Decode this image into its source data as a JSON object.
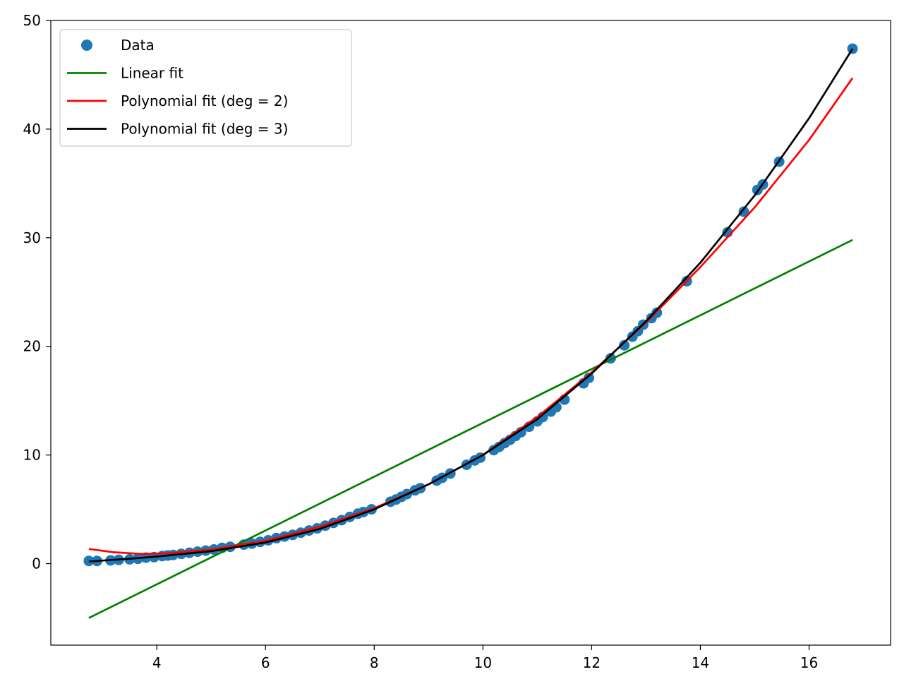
{
  "chart_data": {
    "type": "scatter",
    "title": "",
    "xlabel": "",
    "ylabel": "",
    "xlim": [
      2.05,
      17.5
    ],
    "ylim": [
      -7.5,
      50
    ],
    "x_ticks": [
      4,
      6,
      8,
      10,
      12,
      14,
      16
    ],
    "x_tick_labels": [
      "4",
      "6",
      "8",
      "10",
      "12",
      "14",
      "16"
    ],
    "y_ticks": [
      0,
      10,
      20,
      30,
      40,
      50
    ],
    "y_tick_labels": [
      "0",
      "10",
      "20",
      "30",
      "40",
      "50"
    ],
    "grid": false,
    "legend_position": "top-left",
    "series": [
      {
        "name": "Data",
        "kind": "scatter",
        "color": "#1f77b4",
        "x": [
          2.75,
          2.9,
          3.15,
          3.3,
          3.5,
          3.65,
          3.8,
          3.95,
          4.1,
          4.2,
          4.3,
          4.45,
          4.6,
          4.75,
          4.9,
          5.05,
          5.2,
          5.35,
          5.6,
          5.75,
          5.9,
          6.05,
          6.2,
          6.35,
          6.5,
          6.65,
          6.8,
          6.95,
          7.1,
          7.25,
          7.4,
          7.55,
          7.7,
          7.8,
          7.95,
          8.3,
          8.4,
          8.5,
          8.6,
          8.75,
          8.85,
          9.15,
          9.25,
          9.4,
          9.7,
          9.85,
          9.95,
          10.2,
          10.3,
          10.4,
          10.5,
          10.6,
          10.7,
          10.85,
          11.0,
          11.1,
          11.25,
          11.35,
          11.5,
          11.85,
          11.95,
          12.35,
          12.6,
          12.75,
          12.85,
          12.95,
          13.1,
          13.2,
          13.75,
          14.5,
          14.8,
          15.05,
          15.15,
          15.45,
          16.8
        ],
        "y": [
          0.25,
          0.25,
          0.3,
          0.35,
          0.4,
          0.45,
          0.55,
          0.6,
          0.7,
          0.75,
          0.8,
          0.9,
          1.0,
          1.1,
          1.2,
          1.3,
          1.45,
          1.55,
          1.75,
          1.85,
          2.0,
          2.15,
          2.35,
          2.5,
          2.65,
          2.85,
          3.05,
          3.25,
          3.5,
          3.75,
          4.0,
          4.3,
          4.6,
          4.75,
          5.0,
          5.7,
          5.9,
          6.15,
          6.4,
          6.75,
          6.95,
          7.65,
          7.9,
          8.3,
          9.1,
          9.5,
          9.75,
          10.45,
          10.75,
          11.1,
          11.4,
          11.75,
          12.1,
          12.6,
          13.1,
          13.5,
          14.0,
          14.4,
          15.1,
          16.6,
          17.1,
          18.9,
          20.1,
          20.9,
          21.4,
          22.0,
          22.6,
          23.1,
          26.0,
          30.5,
          32.4,
          34.4,
          34.9,
          37.0,
          47.4
        ]
      },
      {
        "name": "Linear fit",
        "kind": "line",
        "color": "#008000",
        "x": [
          2.75,
          16.8
        ],
        "y": [
          -5.0,
          29.8
        ]
      },
      {
        "name": "Polynomial fit (deg = 2)",
        "kind": "line",
        "color": "#ff0000",
        "x": [
          2.75,
          3.2,
          3.7,
          4.2,
          5.0,
          6.0,
          7.0,
          8.0,
          9.0,
          10.0,
          11.0,
          12.0,
          13.0,
          14.0,
          15.0,
          16.0,
          16.8
        ],
        "y": [
          1.35,
          1.05,
          0.9,
          0.95,
          1.3,
          2.1,
          3.4,
          5.1,
          7.3,
          10.0,
          13.5,
          17.6,
          22.2,
          27.3,
          32.8,
          39.0,
          44.7
        ]
      },
      {
        "name": "Polynomial fit (deg = 3)",
        "kind": "line",
        "color": "#000000",
        "x": [
          2.75,
          3.5,
          4.0,
          5.0,
          6.0,
          7.0,
          8.0,
          9.0,
          10.0,
          11.0,
          12.0,
          13.0,
          14.0,
          15.0,
          16.0,
          16.8
        ],
        "y": [
          0.2,
          0.45,
          0.65,
          1.15,
          1.95,
          3.2,
          5.0,
          7.3,
          10.0,
          13.3,
          17.5,
          22.3,
          27.7,
          33.9,
          41.0,
          47.4
        ]
      }
    ]
  }
}
